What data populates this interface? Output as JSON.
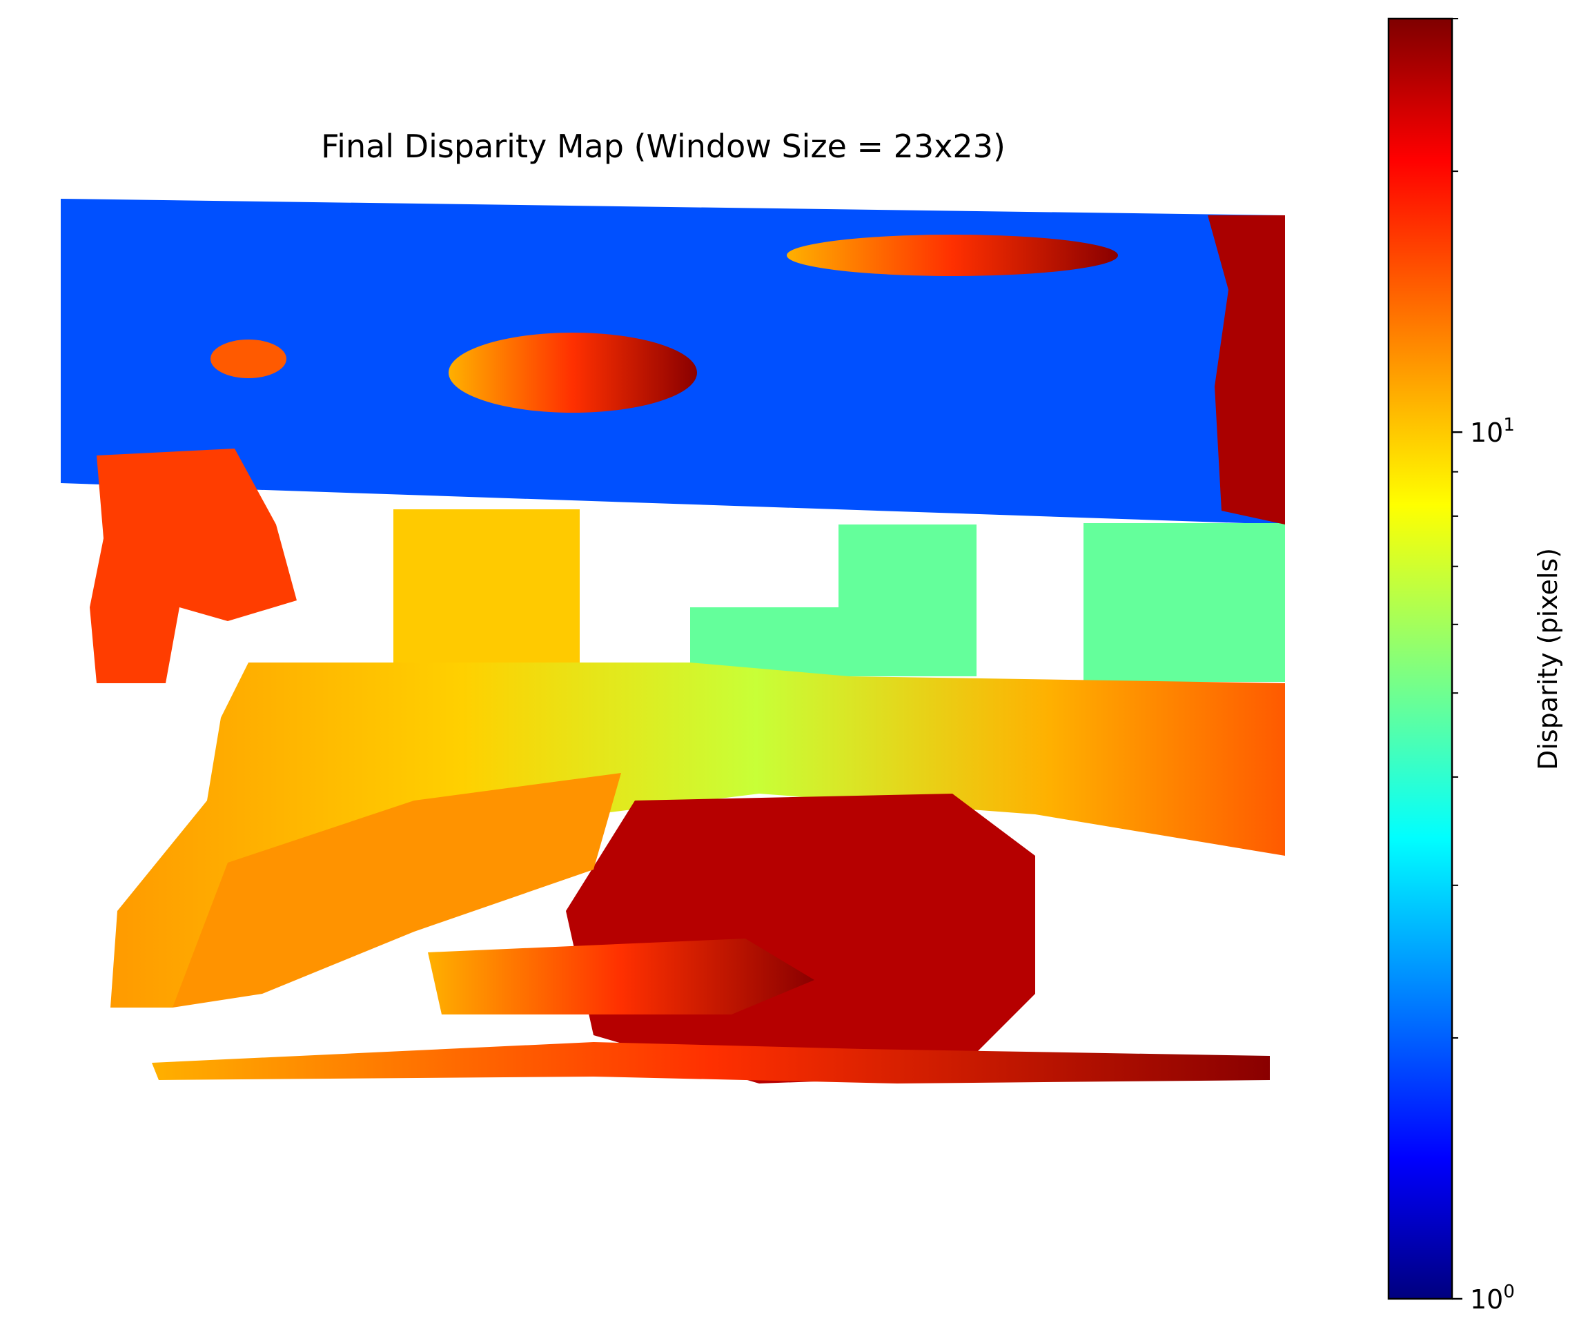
{
  "chart_data": {
    "type": "heatmap",
    "title": "Final Disparity Map (Window Size = 23x23)",
    "colormap": "jet",
    "invalid_color": "#ffffff",
    "colorbar": {
      "label": "Disparity (pixels)",
      "scale": "log",
      "range": [
        1,
        30
      ],
      "major_ticks": [
        {
          "value": 1,
          "base": "10",
          "exp": "0"
        },
        {
          "value": 10,
          "base": "10",
          "exp": "1"
        }
      ],
      "minor_ticks": [
        2,
        3,
        4,
        5,
        6,
        7,
        8,
        9,
        20,
        30
      ]
    },
    "regions": [
      {
        "name": "upper-background",
        "disparity": 2
      },
      {
        "name": "left-wall",
        "disparity": 16
      },
      {
        "name": "center-box",
        "disparity": 10
      },
      {
        "name": "right-boxes",
        "disparity": 5
      },
      {
        "name": "floor-band",
        "disparity": 12
      },
      {
        "name": "foreground-objects",
        "disparity": 25
      },
      {
        "name": "right-edge",
        "disparity": 26
      }
    ]
  }
}
